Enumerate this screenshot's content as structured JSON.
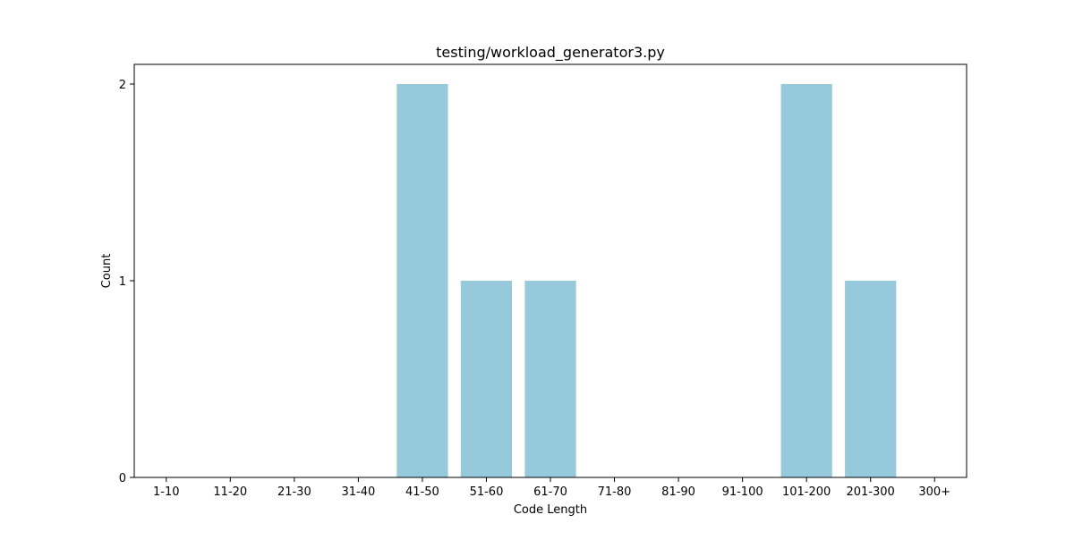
{
  "chart_data": {
    "type": "bar",
    "title": "testing/workload_generator3.py",
    "xlabel": "Code Length",
    "ylabel": "Count",
    "categories": [
      "1-10",
      "11-20",
      "21-30",
      "31-40",
      "41-50",
      "51-60",
      "61-70",
      "71-80",
      "81-90",
      "91-100",
      "101-200",
      "201-300",
      "300+"
    ],
    "values": [
      0,
      0,
      0,
      0,
      2,
      1,
      1,
      0,
      0,
      0,
      2,
      1,
      0
    ],
    "ylim": [
      0,
      2.1
    ],
    "yticks": [
      0,
      1,
      2
    ],
    "grid": false,
    "legend": "none",
    "colors": {
      "bar": "#96c9dc",
      "axes": "#000000",
      "background": "#ffffff"
    }
  }
}
